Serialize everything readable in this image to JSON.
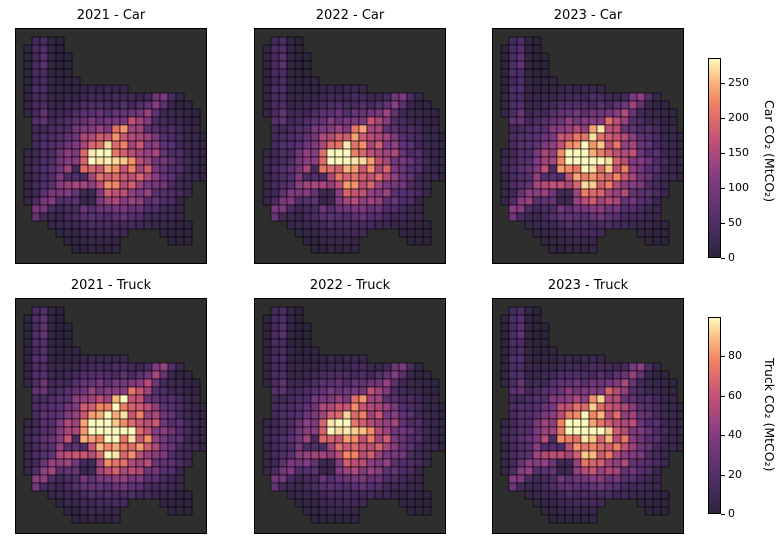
{
  "panels": [
    {
      "title": "2021 - Car",
      "mode": "car",
      "year": 2021,
      "intensity": 0.85
    },
    {
      "title": "2022 - Car",
      "mode": "car",
      "year": 2022,
      "intensity": 0.88
    },
    {
      "title": "2023 - Car",
      "mode": "car",
      "year": 2023,
      "intensity": 1.0
    },
    {
      "title": "2021 - Truck",
      "mode": "truck",
      "year": 2021,
      "intensity": 1.0
    },
    {
      "title": "2022 - Truck",
      "mode": "truck",
      "year": 2022,
      "intensity": 0.8
    },
    {
      "title": "2023 - Truck",
      "mode": "truck",
      "year": 2023,
      "intensity": 0.92
    }
  ],
  "colorbars": [
    {
      "label": "Car CO₂ (MtCO₂)",
      "min": 0,
      "max": 285,
      "ticks": [
        0,
        50,
        100,
        150,
        200,
        250
      ]
    },
    {
      "label": "Truck CO₂ (MtCO₂)",
      "min": 0,
      "max": 100,
      "ticks": [
        0,
        20,
        40,
        60,
        80
      ]
    }
  ],
  "colormap": "magma",
  "basemap_color": "#2e2e2e",
  "grid_cell_outline": "#000000"
}
